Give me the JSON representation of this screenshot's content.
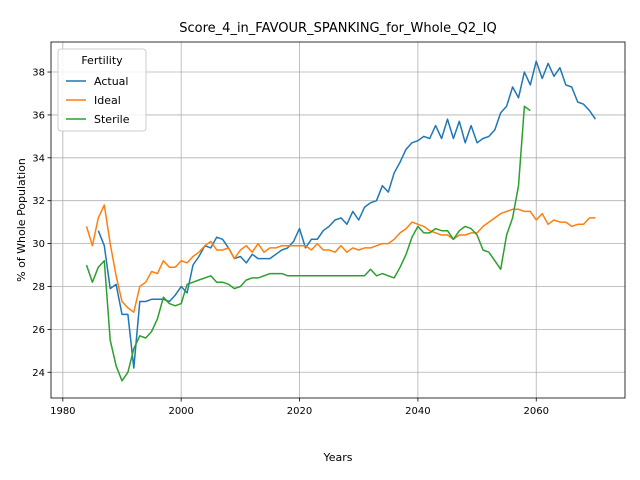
{
  "chart_data": {
    "type": "line",
    "title": "Score_4_in_FAVOUR_SPANKING_for_Whole_Q2_IQ",
    "xlabel": "Years",
    "ylabel": "% of Whole Population",
    "xlim": [
      1978,
      2075
    ],
    "ylim": [
      22.8,
      39.4
    ],
    "xticks": [
      1980,
      2000,
      2020,
      2040,
      2060
    ],
    "yticks": [
      24,
      26,
      28,
      30,
      32,
      34,
      36,
      38
    ],
    "grid": true,
    "legend": {
      "title": "Fertility",
      "placement": "top-left"
    },
    "series": [
      {
        "name": "Actual",
        "color": "#1f77b4",
        "x": [
          1985,
          1986,
          1987,
          1988,
          1989,
          1990,
          1991,
          1992,
          1993,
          1994,
          1995,
          1996,
          1997,
          1998,
          1999,
          2000,
          2001,
          2002,
          2003,
          2004,
          2005,
          2006,
          2007,
          2008,
          2009,
          2010,
          2011,
          2012,
          2013,
          2014,
          2015,
          2016,
          2017,
          2018,
          2019,
          2020,
          2021,
          2022,
          2023,
          2024,
          2025,
          2026,
          2027,
          2028,
          2029,
          2030,
          2031,
          2032,
          2033,
          2034,
          2035,
          2036,
          2037,
          2038,
          2039,
          2040,
          2041,
          2042,
          2043,
          2044,
          2045,
          2046,
          2047,
          2048,
          2049,
          2050,
          2051,
          2052,
          2053,
          2054,
          2055,
          2056,
          2057,
          2058,
          2059,
          2060,
          2061,
          2062,
          2063,
          2064,
          2065,
          2066,
          2067,
          2068,
          2069,
          2070
        ],
        "y": [
          null,
          30.6,
          29.9,
          27.9,
          28.1,
          26.7,
          26.7,
          24.2,
          27.3,
          27.3,
          27.4,
          27.4,
          27.4,
          27.3,
          27.6,
          28.0,
          27.7,
          29.0,
          29.4,
          29.9,
          29.8,
          30.3,
          30.2,
          29.8,
          29.3,
          29.4,
          29.1,
          29.5,
          29.3,
          29.3,
          29.3,
          29.5,
          29.7,
          29.8,
          30.1,
          30.7,
          29.8,
          30.2,
          30.2,
          30.6,
          30.8,
          31.1,
          31.2,
          30.9,
          31.5,
          31.1,
          31.7,
          31.9,
          32.0,
          32.7,
          32.4,
          33.3,
          33.8,
          34.4,
          34.7,
          34.8,
          35.0,
          34.9,
          35.5,
          34.9,
          35.8,
          34.9,
          35.7,
          34.7,
          35.5,
          34.7,
          34.9,
          35.0,
          35.3,
          36.1,
          36.4,
          37.3,
          36.8,
          38.0,
          37.4,
          38.5,
          37.7,
          38.4,
          37.8,
          38.2,
          37.4,
          37.3,
          36.6,
          36.5,
          36.2,
          35.8
        ]
      },
      {
        "name": "Ideal",
        "color": "#ff7f0e",
        "x": [
          1984,
          1985,
          1986,
          1987,
          1988,
          1989,
          1990,
          1991,
          1992,
          1993,
          1994,
          1995,
          1996,
          1997,
          1998,
          1999,
          2000,
          2001,
          2002,
          2003,
          2004,
          2005,
          2006,
          2007,
          2008,
          2009,
          2010,
          2011,
          2012,
          2013,
          2014,
          2015,
          2016,
          2017,
          2018,
          2019,
          2020,
          2021,
          2022,
          2023,
          2024,
          2025,
          2026,
          2027,
          2028,
          2029,
          2030,
          2031,
          2032,
          2033,
          2034,
          2035,
          2036,
          2037,
          2038,
          2039,
          2040,
          2041,
          2042,
          2043,
          2044,
          2045,
          2046,
          2047,
          2048,
          2049,
          2050,
          2051,
          2052,
          2053,
          2054,
          2055,
          2056,
          2057,
          2058,
          2059,
          2060,
          2061,
          2062,
          2063,
          2064,
          2065,
          2066,
          2067,
          2068,
          2069,
          2070
        ],
        "y": [
          30.8,
          29.9,
          31.2,
          31.8,
          30.0,
          28.5,
          27.3,
          27.0,
          26.8,
          28.0,
          28.2,
          28.7,
          28.6,
          29.2,
          28.9,
          28.9,
          29.2,
          29.1,
          29.4,
          29.6,
          29.9,
          30.1,
          29.7,
          29.7,
          29.8,
          29.3,
          29.7,
          29.9,
          29.6,
          30.0,
          29.6,
          29.8,
          29.8,
          29.9,
          29.9,
          29.9,
          29.9,
          29.9,
          29.7,
          30.0,
          29.7,
          29.7,
          29.6,
          29.9,
          29.6,
          29.8,
          29.7,
          29.8,
          29.8,
          29.9,
          30.0,
          30.0,
          30.2,
          30.5,
          30.7,
          31.0,
          30.9,
          30.8,
          30.6,
          30.5,
          30.4,
          30.4,
          30.2,
          30.4,
          30.4,
          30.5,
          30.5,
          30.8,
          31.0,
          31.2,
          31.4,
          31.5,
          31.6,
          31.6,
          31.5,
          31.5,
          31.1,
          31.4,
          30.9,
          31.1,
          31.0,
          31.0,
          30.8,
          30.9,
          30.9,
          31.2,
          31.2
        ]
      },
      {
        "name": "Sterile",
        "color": "#2ca02c",
        "x": [
          1984,
          1985,
          1986,
          1987,
          1988,
          1989,
          1990,
          1991,
          1992,
          1993,
          1994,
          1995,
          1996,
          1997,
          1998,
          1999,
          2000,
          2001,
          2002,
          2003,
          2004,
          2005,
          2006,
          2007,
          2008,
          2009,
          2010,
          2011,
          2012,
          2013,
          2014,
          2015,
          2016,
          2017,
          2018,
          2019,
          2020,
          2021,
          2022,
          2023,
          2024,
          2025,
          2026,
          2027,
          2028,
          2029,
          2030,
          2031,
          2032,
          2033,
          2034,
          2035,
          2036,
          2037,
          2038,
          2039,
          2040,
          2041,
          2042,
          2043,
          2044,
          2045,
          2046,
          2047,
          2048,
          2049,
          2050,
          2051,
          2052,
          2053,
          2054,
          2055,
          2056,
          2057,
          2058,
          2059
        ],
        "y": [
          29.0,
          28.2,
          28.9,
          29.2,
          25.5,
          24.3,
          23.6,
          24.0,
          25.1,
          25.7,
          25.6,
          25.9,
          26.5,
          27.5,
          27.2,
          27.1,
          27.2,
          28.1,
          28.2,
          28.3,
          28.4,
          28.5,
          28.2,
          28.2,
          28.1,
          27.9,
          28.0,
          28.3,
          28.4,
          28.4,
          28.5,
          28.6,
          28.6,
          28.6,
          28.5,
          28.5,
          28.5,
          28.5,
          28.5,
          28.5,
          28.5,
          28.5,
          28.5,
          28.5,
          28.5,
          28.5,
          28.5,
          28.5,
          28.8,
          28.5,
          28.6,
          28.5,
          28.4,
          28.9,
          29.5,
          30.3,
          30.8,
          30.5,
          30.5,
          30.7,
          30.6,
          30.6,
          30.2,
          30.6,
          30.8,
          30.7,
          30.4,
          29.7,
          29.6,
          29.2,
          28.8,
          30.4,
          31.2,
          32.7,
          36.4,
          36.2
        ]
      }
    ]
  }
}
